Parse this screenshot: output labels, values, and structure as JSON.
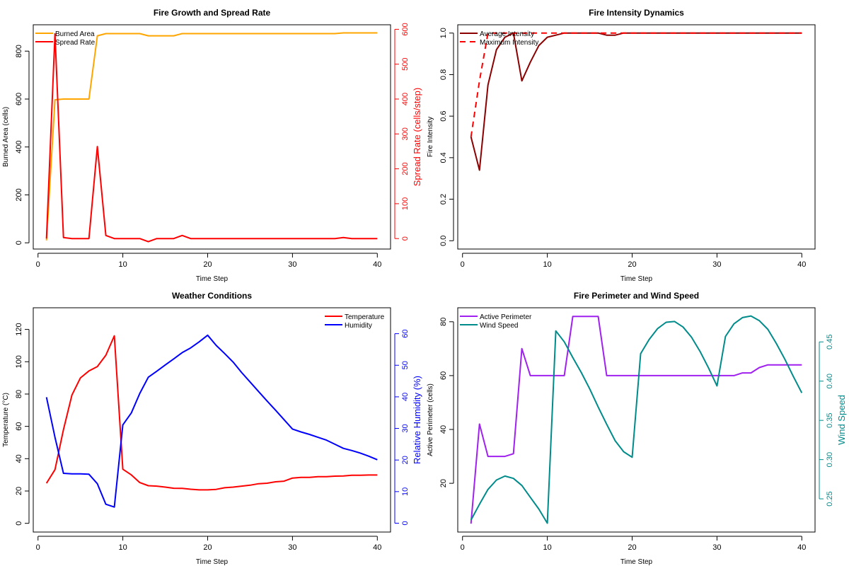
{
  "chart_data": [
    {
      "type": "line",
      "title": "Fire Growth and Spread Rate",
      "xlabel": "Time Step",
      "x": [
        1,
        2,
        3,
        4,
        5,
        6,
        7,
        8,
        9,
        10,
        11,
        12,
        13,
        14,
        15,
        16,
        17,
        18,
        19,
        20,
        21,
        22,
        23,
        24,
        25,
        26,
        27,
        28,
        29,
        30,
        31,
        32,
        33,
        34,
        35,
        36,
        37,
        38,
        39,
        40
      ],
      "xlim": [
        -0.56,
        41.56
      ],
      "x_tick_labels": [
        "0",
        "10",
        "20",
        "30",
        "40"
      ],
      "grid": false,
      "legend_position": "top-left",
      "left_axis": {
        "label": "Burned Area (cells)",
        "ylim": [
          -26,
          910
        ],
        "tick_labels": [
          "0",
          "200",
          "400",
          "600",
          "800"
        ],
        "color": "#000000"
      },
      "right_axis": {
        "label": "Spread Rate (cells/step)",
        "ylim": [
          -30,
          613
        ],
        "tick_labels": [
          "0",
          "100",
          "200",
          "300",
          "400",
          "500",
          "600"
        ],
        "color": "#FF0000"
      },
      "series": [
        {
          "name": "Burned Area",
          "axis": "left",
          "color": "#FFA500",
          "dash": false,
          "values": [
            10,
            597,
            600,
            600,
            600,
            600,
            864,
            873,
            873,
            873,
            873,
            873,
            864,
            864,
            864,
            864,
            873,
            873,
            873,
            873,
            873,
            873,
            873,
            873,
            873,
            873,
            873,
            873,
            873,
            873,
            873,
            873,
            873,
            873,
            873,
            876,
            876,
            876,
            876,
            876
          ]
        },
        {
          "name": "Spread Rate",
          "axis": "right",
          "color": "#FF0000",
          "dash": false,
          "values": [
            0,
            587,
            3,
            0,
            0,
            0,
            264,
            9,
            0,
            0,
            0,
            0,
            -9,
            0,
            0,
            0,
            9,
            0,
            0,
            0,
            0,
            0,
            0,
            0,
            0,
            0,
            0,
            0,
            0,
            0,
            0,
            0,
            0,
            0,
            0,
            3,
            0,
            0,
            0,
            0
          ]
        }
      ]
    },
    {
      "type": "line",
      "title": "Fire Intensity Dynamics",
      "xlabel": "Time Step",
      "x": [
        1,
        2,
        3,
        4,
        5,
        6,
        7,
        8,
        9,
        10,
        11,
        12,
        13,
        14,
        15,
        16,
        17,
        18,
        19,
        20,
        21,
        22,
        23,
        24,
        25,
        26,
        27,
        28,
        29,
        30,
        31,
        32,
        33,
        34,
        35,
        36,
        37,
        38,
        39,
        40
      ],
      "xlim": [
        -0.56,
        41.56
      ],
      "x_tick_labels": [
        "0",
        "10",
        "20",
        "30",
        "40"
      ],
      "grid": false,
      "legend_position": "top-left",
      "left_axis": {
        "label": "Fire Intensity",
        "ylim": [
          -0.04,
          1.04
        ],
        "tick_labels": [
          "0.0",
          "0.2",
          "0.4",
          "0.6",
          "0.8",
          "1.0"
        ],
        "color": "#000000"
      },
      "series": [
        {
          "name": "Average Intensity",
          "axis": "left",
          "color": "#8B0000",
          "dash": false,
          "values": [
            0.5,
            0.34,
            0.75,
            0.92,
            0.98,
            1.0,
            0.77,
            0.86,
            0.94,
            0.98,
            0.99,
            1,
            1,
            1,
            1,
            1,
            0.99,
            0.99,
            1,
            1,
            1,
            1,
            1,
            1,
            1,
            1,
            1,
            1,
            1,
            1,
            1,
            1,
            1,
            1,
            1,
            1,
            1,
            1,
            1,
            1
          ]
        },
        {
          "name": "Maximum Intensity",
          "axis": "left",
          "color": "#FF0000",
          "dash": true,
          "values": [
            0.5,
            0.77,
            1,
            1,
            1,
            1,
            1,
            1,
            1,
            1,
            1,
            1,
            1,
            1,
            1,
            1,
            1,
            1,
            1,
            1,
            1,
            1,
            1,
            1,
            1,
            1,
            1,
            1,
            1,
            1,
            1,
            1,
            1,
            1,
            1,
            1,
            1,
            1,
            1,
            1
          ]
        }
      ]
    },
    {
      "type": "line",
      "title": "Weather Conditions",
      "xlabel": "Time Step",
      "x": [
        1,
        2,
        3,
        4,
        5,
        6,
        7,
        8,
        9,
        10,
        11,
        12,
        13,
        14,
        15,
        16,
        17,
        18,
        19,
        20,
        21,
        22,
        23,
        24,
        25,
        26,
        27,
        28,
        29,
        30,
        31,
        32,
        33,
        34,
        35,
        36,
        37,
        38,
        39,
        40
      ],
      "xlim": [
        -0.56,
        41.56
      ],
      "x_tick_labels": [
        "0",
        "10",
        "20",
        "30",
        "40"
      ],
      "grid": false,
      "legend_position": "top-right",
      "left_axis": {
        "label": "Temperature (°C)",
        "ylim": [
          -5.4,
          133.4
        ],
        "tick_labels": [
          "0",
          "20",
          "40",
          "60",
          "80",
          "100",
          "120"
        ],
        "color": "#000000"
      },
      "right_axis": {
        "label": "Relative Humidity (%)",
        "ylim": [
          -2.8,
          68.2
        ],
        "tick_labels": [
          "0",
          "10",
          "20",
          "30",
          "40",
          "50",
          "60"
        ],
        "color": "#0000FF"
      },
      "series": [
        {
          "name": "Temperature",
          "axis": "left",
          "color": "#FF0000",
          "dash": false,
          "values": [
            24.8,
            33.2,
            58,
            79.4,
            90,
            94.3,
            97,
            104,
            116,
            33.5,
            30,
            25.2,
            23.3,
            23,
            22.4,
            21.7,
            21.6,
            21.1,
            20.7,
            20.7,
            21,
            22,
            22.4,
            23,
            23.6,
            24.5,
            24.8,
            25.7,
            26.1,
            28,
            28.4,
            28.4,
            28.9,
            28.9,
            29.2,
            29.3,
            29.7,
            29.7,
            29.9,
            29.9
          ]
        },
        {
          "name": "Humidity",
          "axis": "right",
          "color": "#0000FF",
          "dash": false,
          "values": [
            39.9,
            27.2,
            15.8,
            15.6,
            15.6,
            15.5,
            12.5,
            6,
            5.1,
            31.1,
            34.9,
            41.1,
            46.2,
            48.1,
            50.1,
            52,
            54,
            55.5,
            57.4,
            59.5,
            56.3,
            53.7,
            51,
            47.7,
            44.7,
            41.7,
            38.7,
            35.8,
            32.8,
            29.8,
            28.9,
            28.1,
            27.2,
            26.3,
            25,
            23.7,
            23,
            22.2,
            21.2,
            20.1
          ]
        }
      ]
    },
    {
      "type": "line",
      "title": "Fire Perimeter and Wind Speed",
      "xlabel": "Time Step",
      "x": [
        1,
        2,
        3,
        4,
        5,
        6,
        7,
        8,
        9,
        10,
        11,
        12,
        13,
        14,
        15,
        16,
        17,
        18,
        19,
        20,
        21,
        22,
        23,
        24,
        25,
        26,
        27,
        28,
        29,
        30,
        31,
        32,
        33,
        34,
        35,
        36,
        37,
        38,
        39,
        40
      ],
      "xlim": [
        -0.56,
        41.56
      ],
      "x_tick_labels": [
        "0",
        "10",
        "20",
        "30",
        "40"
      ],
      "grid": false,
      "legend_position": "top-left",
      "left_axis": {
        "label": "Active Perimeter (cells)",
        "ylim": [
          1.9,
          85.2
        ],
        "tick_labels": [
          "20",
          "40",
          "60",
          "80"
        ],
        "color": "#000000"
      },
      "right_axis": {
        "label": "Wind Speed",
        "ylim": [
          0.2077,
          0.4935
        ],
        "tick_labels": [
          "0.25",
          "0.30",
          "0.35",
          "0.40",
          "0.45"
        ],
        "color": "#008B8B"
      },
      "series": [
        {
          "name": "Active Perimeter",
          "axis": "left",
          "color": "#A020F0",
          "dash": false,
          "values": [
            5,
            42,
            30,
            30,
            30,
            31,
            70,
            60,
            60,
            60,
            60,
            60,
            82,
            82,
            82,
            82,
            60,
            60,
            60,
            60,
            60,
            60,
            60,
            60,
            60,
            60,
            60,
            60,
            60,
            60,
            60,
            60,
            61,
            61,
            63,
            64,
            64,
            64,
            64,
            64
          ]
        },
        {
          "name": "Wind Speed",
          "axis": "right",
          "color": "#008B8B",
          "dash": false,
          "values": [
            0.223,
            0.243,
            0.262,
            0.274,
            0.279,
            0.276,
            0.267,
            0.252,
            0.237,
            0.219,
            0.464,
            0.45,
            0.43,
            0.411,
            0.39,
            0.367,
            0.345,
            0.324,
            0.31,
            0.303,
            0.435,
            0.453,
            0.467,
            0.475,
            0.476,
            0.469,
            0.456,
            0.438,
            0.417,
            0.394,
            0.457,
            0.473,
            0.481,
            0.483,
            0.477,
            0.466,
            0.448,
            0.428,
            0.406,
            0.385
          ]
        }
      ]
    }
  ]
}
